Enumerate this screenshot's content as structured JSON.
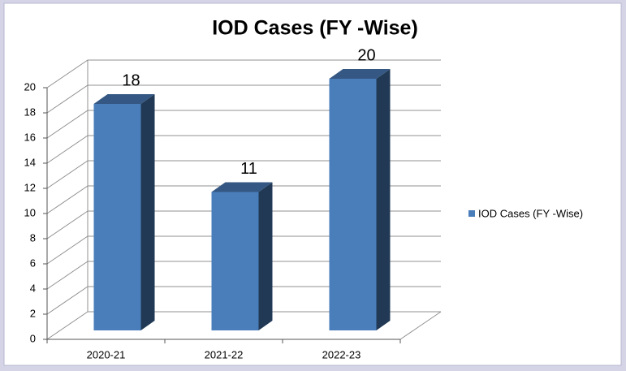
{
  "chart_data": {
    "type": "bar3d",
    "title": "IOD Cases (FY -Wise)",
    "categories": [
      "2020-21",
      "2021-22",
      "2022-23"
    ],
    "series": [
      {
        "name": "IOD Cases (FY -Wise)",
        "color": "#4a7ebb",
        "values": [
          18,
          11,
          20
        ]
      }
    ],
    "ylim": [
      0,
      20
    ],
    "yticks": [
      0,
      2,
      4,
      6,
      8,
      10,
      12,
      14,
      16,
      18,
      20
    ],
    "grid": true,
    "legend": "right"
  }
}
